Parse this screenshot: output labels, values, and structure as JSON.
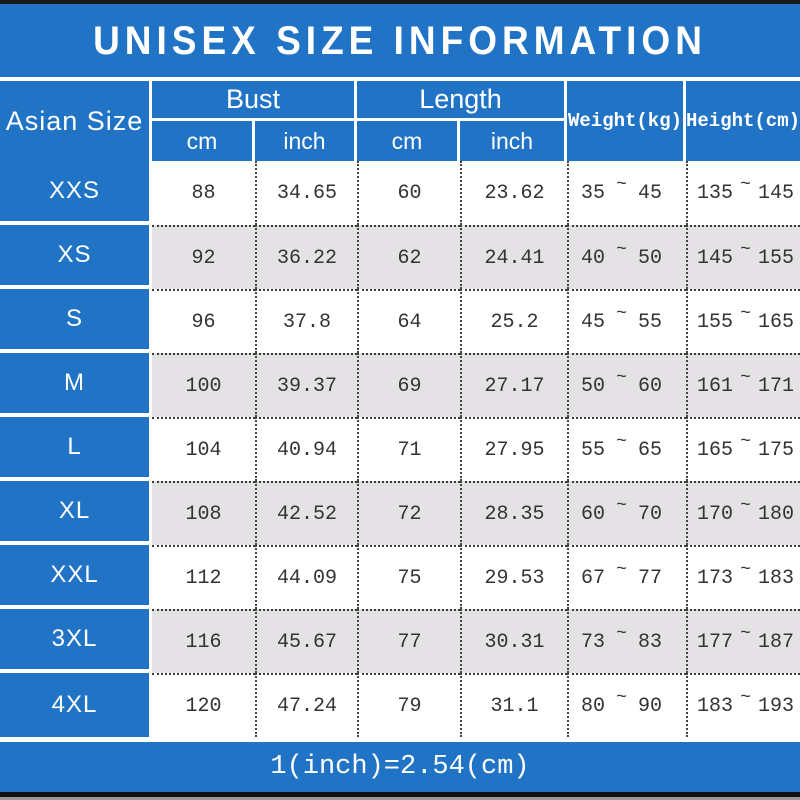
{
  "title": "UNISEX SIZE INFORMATION",
  "footer_note": "1(inch)=2.54(cm)",
  "range_separator": "~",
  "colors": {
    "blue": "#2173C6",
    "alt_row_gray": "#E5E2E5",
    "data_text": "#333333",
    "top_bar_black": "#191919",
    "bottom_bar_black": "#111111"
  },
  "table": {
    "corner_header": "Asian Size",
    "bust_header": "Bust",
    "length_header": "Length",
    "weight_header": "Weight(kg)",
    "height_header": "Height(cm)",
    "unit_cm": "cm",
    "unit_inch": "inch",
    "rows": [
      {
        "size": "XXS",
        "bust_cm": "88",
        "bust_inch": "34.65",
        "length_cm": "60",
        "length_inch": "23.62",
        "weight": [
          "35",
          "45"
        ],
        "height": [
          "135",
          "145"
        ]
      },
      {
        "size": "XS",
        "bust_cm": "92",
        "bust_inch": "36.22",
        "length_cm": "62",
        "length_inch": "24.41",
        "weight": [
          "40",
          "50"
        ],
        "height": [
          "145",
          "155"
        ]
      },
      {
        "size": "S",
        "bust_cm": "96",
        "bust_inch": "37.8",
        "length_cm": "64",
        "length_inch": "25.2",
        "weight": [
          "45",
          "55"
        ],
        "height": [
          "155",
          "165"
        ]
      },
      {
        "size": "M",
        "bust_cm": "100",
        "bust_inch": "39.37",
        "length_cm": "69",
        "length_inch": "27.17",
        "weight": [
          "50",
          "60"
        ],
        "height": [
          "161",
          "171"
        ]
      },
      {
        "size": "L",
        "bust_cm": "104",
        "bust_inch": "40.94",
        "length_cm": "71",
        "length_inch": "27.95",
        "weight": [
          "55",
          "65"
        ],
        "height": [
          "165",
          "175"
        ]
      },
      {
        "size": "XL",
        "bust_cm": "108",
        "bust_inch": "42.52",
        "length_cm": "72",
        "length_inch": "28.35",
        "weight": [
          "60",
          "70"
        ],
        "height": [
          "170",
          "180"
        ]
      },
      {
        "size": "XXL",
        "bust_cm": "112",
        "bust_inch": "44.09",
        "length_cm": "75",
        "length_inch": "29.53",
        "weight": [
          "67",
          "77"
        ],
        "height": [
          "173",
          "183"
        ]
      },
      {
        "size": "3XL",
        "bust_cm": "116",
        "bust_inch": "45.67",
        "length_cm": "77",
        "length_inch": "30.31",
        "weight": [
          "73",
          "83"
        ],
        "height": [
          "177",
          "187"
        ]
      },
      {
        "size": "4XL",
        "bust_cm": "120",
        "bust_inch": "47.24",
        "length_cm": "79",
        "length_inch": "31.1",
        "weight": [
          "80",
          "90"
        ],
        "height": [
          "183",
          "193"
        ]
      }
    ]
  }
}
